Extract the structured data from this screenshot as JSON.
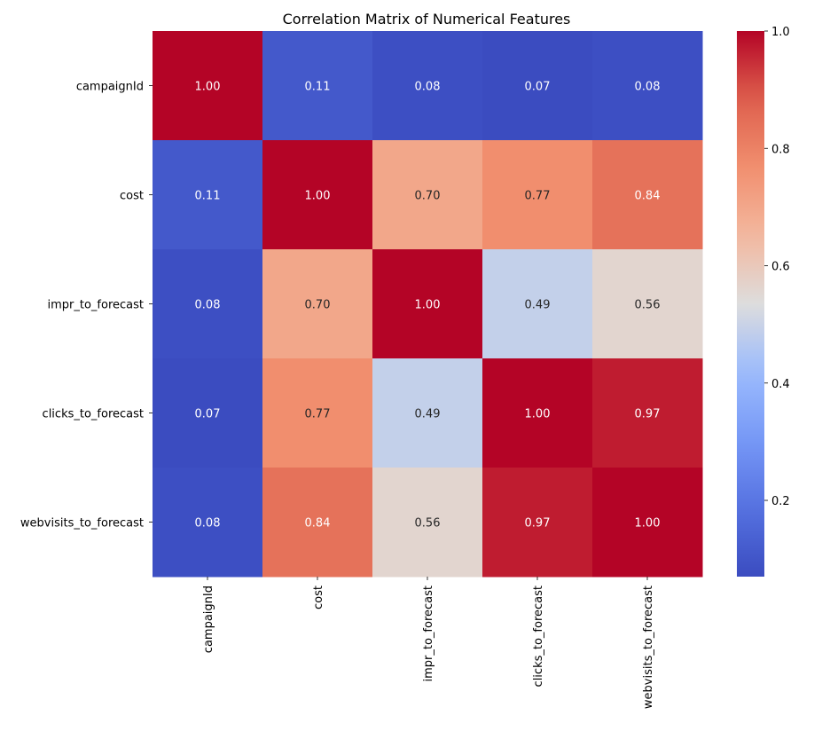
{
  "chart_data": {
    "type": "heatmap",
    "title": "Correlation Matrix of Numerical Features",
    "rows": [
      "campaignId",
      "cost",
      "impr_to_forecast",
      "clicks_to_forecast",
      "webvisits_to_forecast"
    ],
    "columns": [
      "campaignId",
      "cost",
      "impr_to_forecast",
      "clicks_to_forecast",
      "webvisits_to_forecast"
    ],
    "values": [
      [
        1.0,
        0.11,
        0.08,
        0.07,
        0.08
      ],
      [
        0.11,
        1.0,
        0.7,
        0.77,
        0.84
      ],
      [
        0.08,
        0.7,
        1.0,
        0.49,
        0.56
      ],
      [
        0.07,
        0.77,
        0.49,
        1.0,
        0.97
      ],
      [
        0.08,
        0.84,
        0.56,
        0.97,
        1.0
      ]
    ],
    "value_format": "0.00",
    "colormap": "coolwarm",
    "colorbar": {
      "range": [
        0.07,
        1.0
      ],
      "ticks": [
        0.2,
        0.4,
        0.6,
        0.8,
        1.0
      ],
      "tick_labels": [
        "0.2",
        "0.4",
        "0.6",
        "0.8",
        "1.0"
      ]
    },
    "xlabel": "",
    "ylabel": ""
  }
}
